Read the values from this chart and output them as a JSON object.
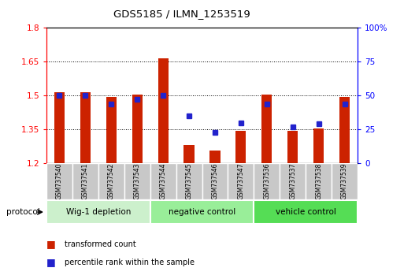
{
  "title": "GDS5185 / ILMN_1253519",
  "samples": [
    "GSM737540",
    "GSM737541",
    "GSM737542",
    "GSM737543",
    "GSM737544",
    "GSM737545",
    "GSM737546",
    "GSM737547",
    "GSM737536",
    "GSM737537",
    "GSM737538",
    "GSM737539"
  ],
  "red_values": [
    1.515,
    1.515,
    1.495,
    1.505,
    1.665,
    1.28,
    1.255,
    1.345,
    1.505,
    1.345,
    1.355,
    1.495
  ],
  "blue_values": [
    50,
    50,
    44,
    47,
    50,
    35,
    23,
    30,
    44,
    27,
    29,
    44
  ],
  "ylim_left": [
    1.2,
    1.8
  ],
  "ylim_right": [
    0,
    100
  ],
  "yticks_left": [
    1.2,
    1.35,
    1.5,
    1.65,
    1.8
  ],
  "yticks_right": [
    0,
    25,
    50,
    75,
    100
  ],
  "groups": [
    {
      "label": "Wig-1 depletion",
      "start": 0,
      "end": 3
    },
    {
      "label": "negative control",
      "start": 4,
      "end": 7
    },
    {
      "label": "vehicle control",
      "start": 8,
      "end": 11
    }
  ],
  "group_colors": [
    "#ccf0cc",
    "#99ee99",
    "#55dd55"
  ],
  "bar_color_red": "#cc2200",
  "bar_color_blue": "#2222cc",
  "bar_width": 0.4,
  "protocol_label": "protocol",
  "legend_red": "transformed count",
  "legend_blue": "percentile rank within the sample"
}
